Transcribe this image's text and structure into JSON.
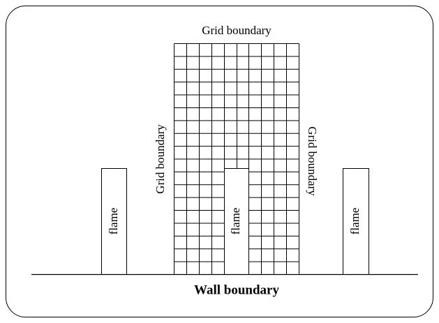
{
  "grid_top_label": "Grid boundary",
  "grid_left_label": "Grid boundary",
  "grid_right_label": "Grid boundary",
  "flames": [
    {
      "label": "flame"
    },
    {
      "label": "flame"
    },
    {
      "label": "flame"
    }
  ],
  "wall_label": "Wall boundary"
}
